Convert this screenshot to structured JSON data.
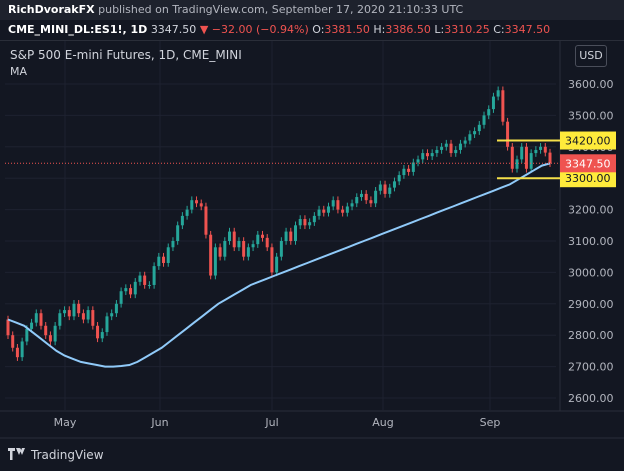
{
  "header": {
    "author": "RichDvorakFX",
    "published": "published on TradingView.com, September 17, 2020 21:10:33 UTC"
  },
  "symbol_bar": {
    "symbol": "CME_MINI_DL:ES1!, 1D",
    "last": "3347.50",
    "arrow": "▼",
    "change": "−32.00 (−0.94%)",
    "o_label": "O:",
    "o_value": "3381.50",
    "h_label": "H:",
    "h_value": "3386.50",
    "l_label": "L:",
    "l_value": "3310.25",
    "c_label": "C:",
    "c_value": "3347.50"
  },
  "legend": {
    "title": "S&P 500 E-mini Futures, 1D, CME_MINI",
    "ma": "MA"
  },
  "currency_button": "USD",
  "brand": "TradingView",
  "colors": {
    "background": "#131722",
    "up": "#26a69a",
    "down": "#ef5350",
    "ma_line": "#90caf9",
    "level_box": "#ffeb3b",
    "current_price": "#ef5350"
  },
  "chart_data": {
    "type": "line",
    "y_axis": {
      "ticks": [
        "3600.00",
        "3500.00",
        "3400.00",
        "3300.00",
        "3200.00",
        "3100.00",
        "3000.00",
        "2900.00",
        "2800.00",
        "2700.00",
        "2600.00"
      ],
      "range": [
        2550,
        3660
      ]
    },
    "x_axis": {
      "ticks": [
        "May",
        "Jun",
        "Jul",
        "Aug",
        "Sep"
      ]
    },
    "levels": [
      {
        "label": "3420.00",
        "value": 3420
      },
      {
        "label": "3300.00",
        "value": 3300
      }
    ],
    "current_price": {
      "label": "3347.50",
      "value": 3347.5
    },
    "series": [
      {
        "values": [
          [
            2850,
            2800
          ],
          [
            2800,
            2760
          ],
          [
            2760,
            2730
          ],
          [
            2730,
            2780
          ],
          [
            2780,
            2820
          ],
          [
            2820,
            2840
          ],
          [
            2840,
            2870
          ],
          [
            2870,
            2830
          ],
          [
            2830,
            2800
          ],
          [
            2800,
            2780
          ],
          [
            2780,
            2830
          ],
          [
            2830,
            2870
          ],
          [
            2870,
            2880
          ],
          [
            2880,
            2860
          ],
          [
            2860,
            2900
          ],
          [
            2900,
            2870
          ],
          [
            2870,
            2850
          ],
          [
            2850,
            2880
          ],
          [
            2880,
            2830
          ],
          [
            2830,
            2790
          ],
          [
            2790,
            2810
          ],
          [
            2810,
            2860
          ],
          [
            2860,
            2870
          ],
          [
            2870,
            2900
          ],
          [
            2900,
            2940
          ],
          [
            2940,
            2950
          ],
          [
            2950,
            2930
          ],
          [
            2930,
            2970
          ],
          [
            2970,
            2990
          ],
          [
            2990,
            2960
          ],
          [
            2960,
            2960
          ],
          [
            2960,
            3020
          ],
          [
            3020,
            3050
          ],
          [
            3050,
            3030
          ],
          [
            3030,
            3080
          ],
          [
            3080,
            3100
          ],
          [
            3100,
            3150
          ],
          [
            3150,
            3180
          ],
          [
            3180,
            3200
          ],
          [
            3200,
            3230
          ],
          [
            3230,
            3220
          ],
          [
            3220,
            3210
          ],
          [
            3210,
            3120
          ],
          [
            3120,
            2990
          ],
          [
            2990,
            3080
          ],
          [
            3080,
            3050
          ],
          [
            3050,
            3100
          ],
          [
            3100,
            3130
          ],
          [
            3130,
            3080
          ],
          [
            3080,
            3100
          ],
          [
            3100,
            3050
          ],
          [
            3050,
            3080
          ],
          [
            3080,
            3090
          ],
          [
            3090,
            3120
          ],
          [
            3120,
            3110
          ],
          [
            3110,
            3080
          ],
          [
            3080,
            3000
          ],
          [
            3000,
            3050
          ],
          [
            3050,
            3100
          ],
          [
            3100,
            3130
          ],
          [
            3130,
            3100
          ],
          [
            3100,
            3150
          ],
          [
            3150,
            3170
          ],
          [
            3170,
            3150
          ],
          [
            3150,
            3160
          ],
          [
            3160,
            3180
          ],
          [
            3180,
            3200
          ],
          [
            3200,
            3190
          ],
          [
            3190,
            3210
          ],
          [
            3210,
            3230
          ],
          [
            3230,
            3200
          ],
          [
            3200,
            3190
          ],
          [
            3190,
            3210
          ],
          [
            3210,
            3220
          ],
          [
            3220,
            3240
          ],
          [
            3240,
            3250
          ],
          [
            3250,
            3230
          ],
          [
            3230,
            3220
          ],
          [
            3220,
            3260
          ],
          [
            3260,
            3280
          ],
          [
            3280,
            3250
          ],
          [
            3250,
            3270
          ],
          [
            3270,
            3290
          ],
          [
            3290,
            3310
          ],
          [
            3310,
            3330
          ],
          [
            3330,
            3320
          ],
          [
            3320,
            3350
          ],
          [
            3350,
            3360
          ],
          [
            3360,
            3380
          ],
          [
            3380,
            3370
          ],
          [
            3370,
            3380
          ],
          [
            3380,
            3390
          ],
          [
            3390,
            3400
          ],
          [
            3400,
            3410
          ],
          [
            3410,
            3380
          ],
          [
            3380,
            3390
          ],
          [
            3390,
            3410
          ],
          [
            3410,
            3420
          ],
          [
            3420,
            3440
          ],
          [
            3440,
            3450
          ],
          [
            3450,
            3470
          ],
          [
            3470,
            3500
          ],
          [
            3500,
            3520
          ],
          [
            3520,
            3560
          ],
          [
            3560,
            3580
          ],
          [
            3580,
            3480
          ],
          [
            3480,
            3400
          ],
          [
            3400,
            3330
          ],
          [
            3330,
            3360
          ],
          [
            3360,
            3400
          ],
          [
            3400,
            3330
          ],
          [
            3330,
            3380
          ],
          [
            3380,
            3390
          ],
          [
            3390,
            3400
          ],
          [
            3400,
            3381.5
          ],
          [
            3381.5,
            3347.5
          ]
        ]
      },
      {
        "values": [
          2850,
          2840,
          2830,
          2810,
          2790,
          2770,
          2750,
          2735,
          2725,
          2715,
          2710,
          2705,
          2700,
          2700,
          2702,
          2705,
          2715,
          2730,
          2745,
          2760,
          2780,
          2800,
          2820,
          2840,
          2860,
          2880,
          2900,
          2915,
          2930,
          2945,
          2960,
          2970,
          2980,
          2990,
          3000,
          3010,
          3020,
          3030,
          3040,
          3050,
          3060,
          3070,
          3080,
          3090,
          3100,
          3110,
          3120,
          3130,
          3140,
          3150,
          3160,
          3170,
          3180,
          3190,
          3200,
          3210,
          3220,
          3230,
          3240,
          3250,
          3260,
          3270,
          3280,
          3295,
          3310,
          3325,
          3340,
          3347
        ]
      }
    ]
  }
}
